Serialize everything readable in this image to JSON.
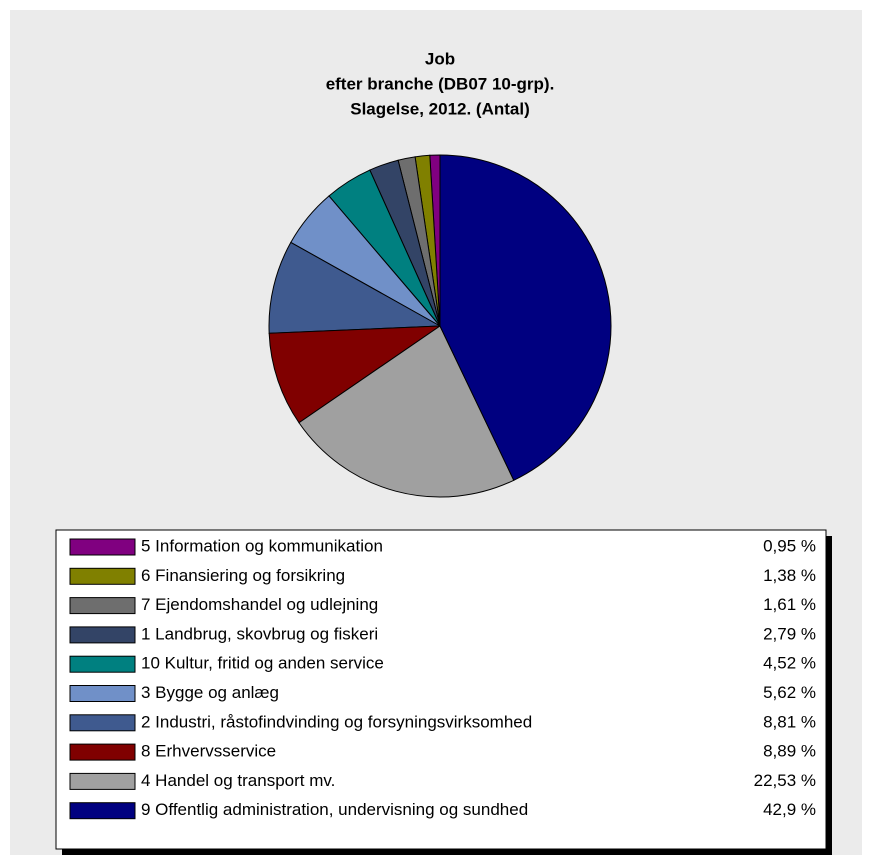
{
  "chart_data": {
    "type": "pie",
    "title": [
      "Job",
      "efter branche (DB07 10-grp).",
      "Slagelse, 2012. (Antal)"
    ],
    "categories": [
      "5 Information og kommunikation",
      "6 Finansiering og forsikring",
      "7 Ejendomshandel og udlejning",
      "1 Landbrug, skovbrug og fiskeri",
      "10 Kultur, fritid og anden service",
      "3 Bygge og anlæg",
      "2 Industri, råstofindvinding og forsyningsvirksomhed",
      "8 Erhvervsservice",
      "4 Handel og transport mv.",
      "9 Offentlig administration, undervisning og sundhed"
    ],
    "values": [
      0.95,
      1.38,
      1.61,
      2.79,
      4.52,
      5.62,
      8.81,
      8.89,
      22.53,
      42.9
    ],
    "value_labels": [
      "0,95 %",
      "1,38 %",
      "1,61 %",
      "2,79 %",
      "4,52 %",
      "5,62 %",
      "8,81 %",
      "8,89 %",
      "22,53 %",
      "42,9 %"
    ],
    "colors": [
      "#800080",
      "#808000",
      "#6e6e6e",
      "#334466",
      "#008080",
      "#7090c8",
      "#3f5a8f",
      "#800000",
      "#a0a0a0",
      "#000080"
    ],
    "direction": "counterclockwise"
  }
}
